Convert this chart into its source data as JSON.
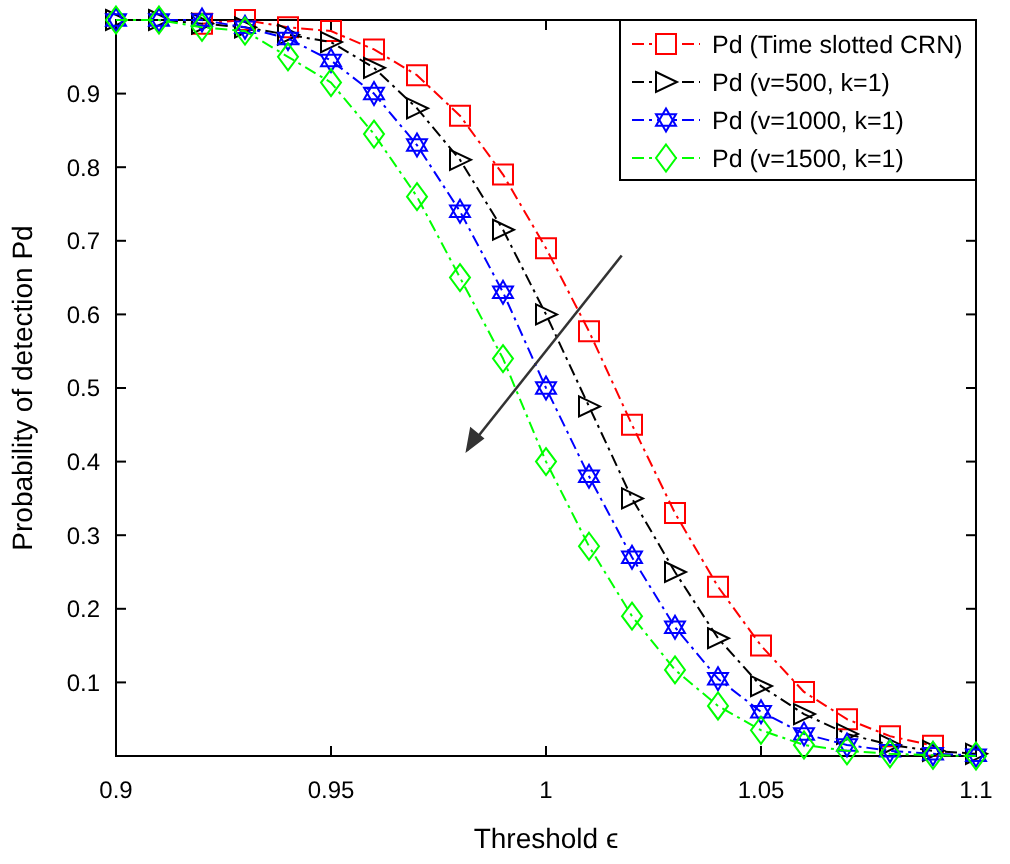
{
  "chart_data": {
    "type": "line",
    "xlabel": "Threshold ϵ",
    "ylabel": "Probability of detection Pd",
    "x": [
      0.9,
      0.91,
      0.92,
      0.93,
      0.94,
      0.95,
      0.96,
      0.97,
      0.98,
      0.99,
      1.0,
      1.01,
      1.02,
      1.03,
      1.04,
      1.05,
      1.06,
      1.07,
      1.08,
      1.09,
      1.1
    ],
    "series": [
      {
        "name": "Pd (Time slotted CRN)",
        "color": "#ff0000",
        "marker": "square",
        "values": [
          null,
          null,
          0.995,
          1.0,
          0.99,
          0.985,
          0.96,
          0.925,
          0.87,
          0.79,
          0.69,
          0.577,
          0.45,
          0.33,
          0.23,
          0.15,
          0.087,
          0.05,
          0.027,
          0.014,
          null
        ]
      },
      {
        "name": "Pd (v=500, k=1)",
        "color": "#000000",
        "marker": "triangle",
        "values": [
          1.0,
          1.0,
          0.995,
          0.99,
          0.98,
          0.97,
          0.935,
          0.88,
          0.81,
          0.715,
          0.6,
          0.475,
          0.35,
          0.25,
          0.16,
          0.095,
          0.057,
          0.03,
          0.015,
          0.007,
          0.003
        ]
      },
      {
        "name": "Pd (v=1000, k=1)",
        "color": "#0000ff",
        "marker": "star",
        "values": [
          1.0,
          1.0,
          1.0,
          0.99,
          0.975,
          0.945,
          0.9,
          0.83,
          0.74,
          0.63,
          0.5,
          0.38,
          0.27,
          0.175,
          0.105,
          0.06,
          0.03,
          0.015,
          0.007,
          0.003,
          0.001
        ]
      },
      {
        "name": "Pd (v=1500, k=1)",
        "color": "#00ff00",
        "marker": "diamond",
        "values": [
          1.0,
          1.0,
          0.99,
          0.985,
          0.95,
          0.915,
          0.845,
          0.76,
          0.65,
          0.54,
          0.4,
          0.285,
          0.19,
          0.117,
          0.068,
          0.035,
          0.015,
          0.007,
          0.003,
          0.001,
          0.0
        ]
      }
    ],
    "xlim": [
      0.9,
      1.1
    ],
    "xticks": [
      0.9,
      0.95,
      1,
      1.05,
      1.1
    ],
    "ylim": [
      0,
      1
    ],
    "yticks": [
      0.1,
      0.2,
      0.3,
      0.4,
      0.5,
      0.6,
      0.7,
      0.8,
      0.9
    ],
    "grid": false,
    "legend": "top right",
    "line_style": "dashed"
  }
}
